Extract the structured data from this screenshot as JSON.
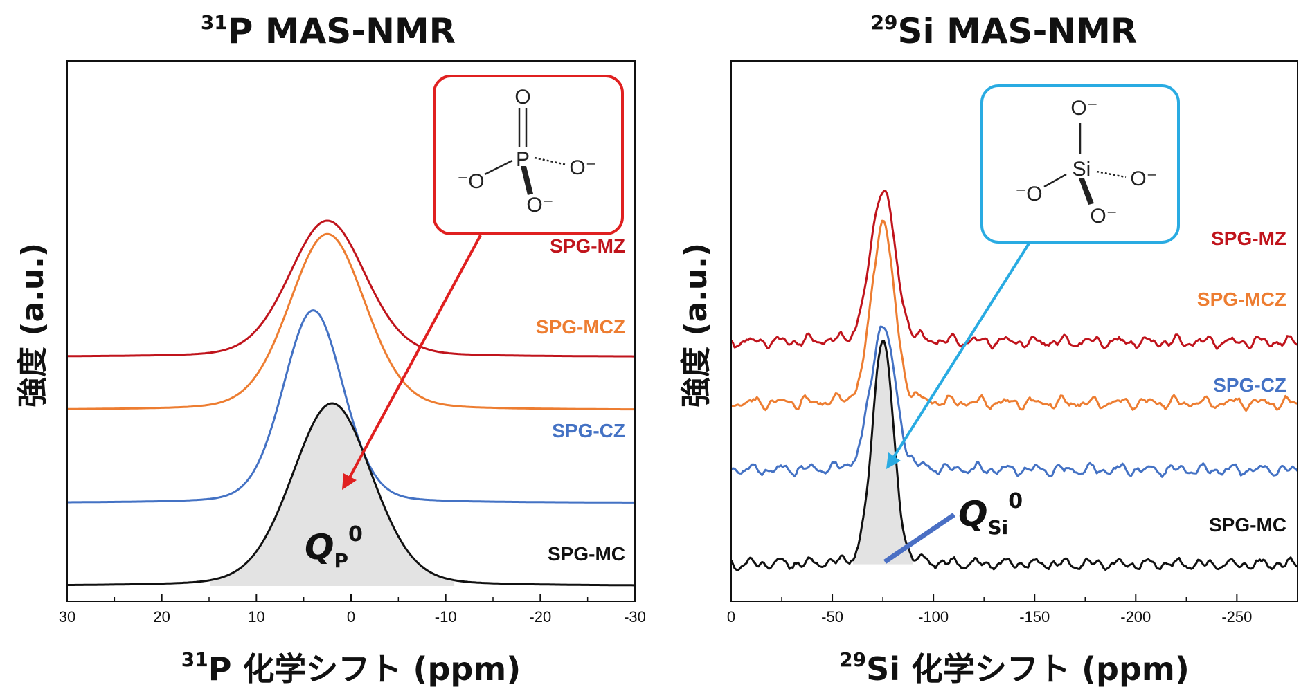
{
  "panels": [
    {
      "id": "p31",
      "title_sup": "31",
      "title_main": "P MAS-NMR",
      "xlabel_sup": "31",
      "xlabel_main": "P 化学シフト (ppm)",
      "ylabel": "強度 (a.u.)",
      "structure": {
        "center": "P",
        "atoms": [
          "O",
          "⁻O",
          "O⁻",
          "O⁻"
        ],
        "box_color": "#e02020"
      },
      "annotation": {
        "symbol": "Q",
        "subscript": "P",
        "superscript": "0"
      }
    },
    {
      "id": "si29",
      "title_sup": "29",
      "title_main": "Si MAS-NMR",
      "xlabel_sup": "29",
      "xlabel_main": "Si 化学シフト (ppm)",
      "ylabel": "強度 (a.u.)",
      "structure": {
        "center": "Si",
        "atoms": [
          "O⁻",
          "⁻O",
          "O⁻",
          "O⁻"
        ],
        "box_color": "#29abe2"
      },
      "annotation": {
        "symbol": "Q",
        "subscript": "Si",
        "superscript": "0"
      }
    }
  ],
  "chart_data": [
    {
      "type": "line",
      "title": "31P MAS-NMR",
      "xlabel": "31P 化学シフト (ppm)",
      "ylabel": "強度 (a.u.)",
      "xlim": [
        30,
        -30
      ],
      "xticks": [
        "30",
        "20",
        "10",
        "0",
        "-10",
        "-20",
        "-30"
      ],
      "grid": false,
      "series": [
        {
          "name": "SPG-MZ",
          "color": "#c0141c",
          "peak_ppm": 2.5,
          "fwhm_ppm": 9.5,
          "offset": 3.45,
          "height": 2.05
        },
        {
          "name": "SPG-MCZ",
          "color": "#ed7d31",
          "peak_ppm": 2.5,
          "fwhm_ppm": 9.5,
          "offset": 2.65,
          "height": 2.65
        },
        {
          "name": "SPG-CZ",
          "color": "#4472c4",
          "peak_ppm": 4.0,
          "fwhm_ppm": 7.5,
          "offset": 1.25,
          "height": 2.9
        },
        {
          "name": "SPG-MC",
          "color": "#111111",
          "peak_ppm": 2.0,
          "fwhm_ppm": 10.0,
          "offset": 0.0,
          "height": 2.75,
          "filled": true
        }
      ]
    },
    {
      "type": "line",
      "title": "29Si MAS-NMR",
      "xlabel": "29Si 化学シフト (ppm)",
      "ylabel": "強度 (a.u.)",
      "xlim": [
        0,
        -280
      ],
      "xticks": [
        "0",
        "-50",
        "-100",
        "-150",
        "-200",
        "-250"
      ],
      "grid": false,
      "series": [
        {
          "name": "SPG-MZ",
          "color": "#c0141c",
          "peak_ppm": -75,
          "fwhm_ppm": 14,
          "offset": 3.95,
          "height": 2.55
        },
        {
          "name": "SPG-MCZ",
          "color": "#ed7d31",
          "peak_ppm": -75,
          "fwhm_ppm": 13,
          "offset": 2.95,
          "height": 3.0
        },
        {
          "name": "SPG-CZ",
          "color": "#4472c4",
          "peak_ppm": -75,
          "fwhm_ppm": 14,
          "offset": 1.85,
          "height": 2.4
        },
        {
          "name": "SPG-MC",
          "color": "#111111",
          "peak_ppm": -75,
          "fwhm_ppm": 12,
          "offset": 0.3,
          "height": 3.75,
          "filled": true
        }
      ]
    }
  ]
}
